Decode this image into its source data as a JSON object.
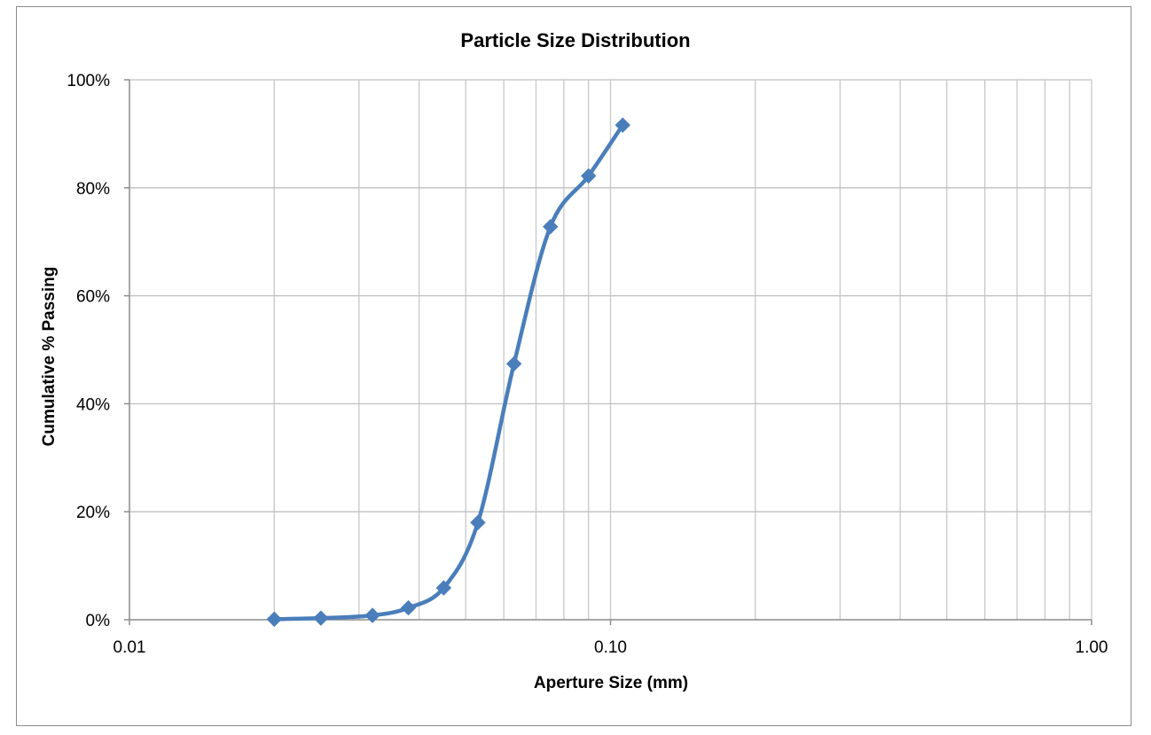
{
  "chart_data": {
    "type": "scatter",
    "title": "Particle Size Distribution",
    "xlabel": "Aperture Size (mm)",
    "ylabel": "Cumulative % Passing",
    "x_scale": "log",
    "xlim": [
      0.01,
      1.0
    ],
    "ylim": [
      0,
      100
    ],
    "x_ticks": [
      0.01,
      0.1,
      1.0
    ],
    "x_tick_labels": [
      "0.01",
      "0.10",
      "1.00"
    ],
    "y_ticks": [
      0,
      20,
      40,
      60,
      80,
      100
    ],
    "y_tick_labels": [
      "0%",
      "20%",
      "40%",
      "60%",
      "80%",
      "100%"
    ],
    "grid": true,
    "legend": "none",
    "line_style": "smooth",
    "marker": "diamond",
    "series": [
      {
        "color": "#4a7ebb",
        "x": [
          0.02,
          0.025,
          0.032,
          0.038,
          0.045,
          0.053,
          0.063,
          0.075,
          0.09,
          0.106
        ],
        "y": [
          0.1,
          0.3,
          0.8,
          2.2,
          5.9,
          18.0,
          47.4,
          72.8,
          82.2,
          91.6
        ]
      }
    ]
  }
}
